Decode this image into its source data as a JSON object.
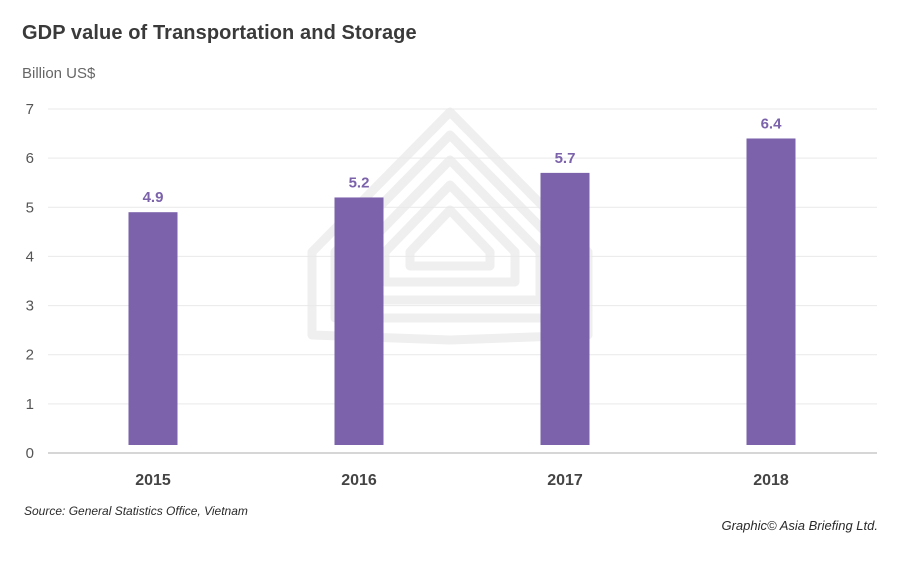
{
  "title": "GDP value of Transportation and Storage",
  "unit_label": "Billion US$",
  "source": "Source: General Statistics Office, Vietnam",
  "credit": "Graphic© Asia Briefing Ltd.",
  "colors": {
    "bar": "#7B62AB",
    "data_label": "#7B62AB",
    "grid": "#e9e9e9",
    "axis": "#bdbdbd",
    "watermark": "#efefef"
  },
  "chart_data": {
    "type": "bar",
    "categories": [
      "2015",
      "2016",
      "2017",
      "2018"
    ],
    "values": [
      4.9,
      5.2,
      5.7,
      6.4
    ],
    "data_labels": [
      "4.9",
      "5.2",
      "5.7",
      "6.4"
    ],
    "title": "GDP value of Transportation and Storage",
    "xlabel": "",
    "ylabel": "Billion US$",
    "ylim": [
      0,
      7
    ],
    "yticks": [
      "0",
      "1",
      "2",
      "3",
      "4",
      "5",
      "6",
      "7"
    ],
    "grid": true,
    "legend": "none"
  }
}
